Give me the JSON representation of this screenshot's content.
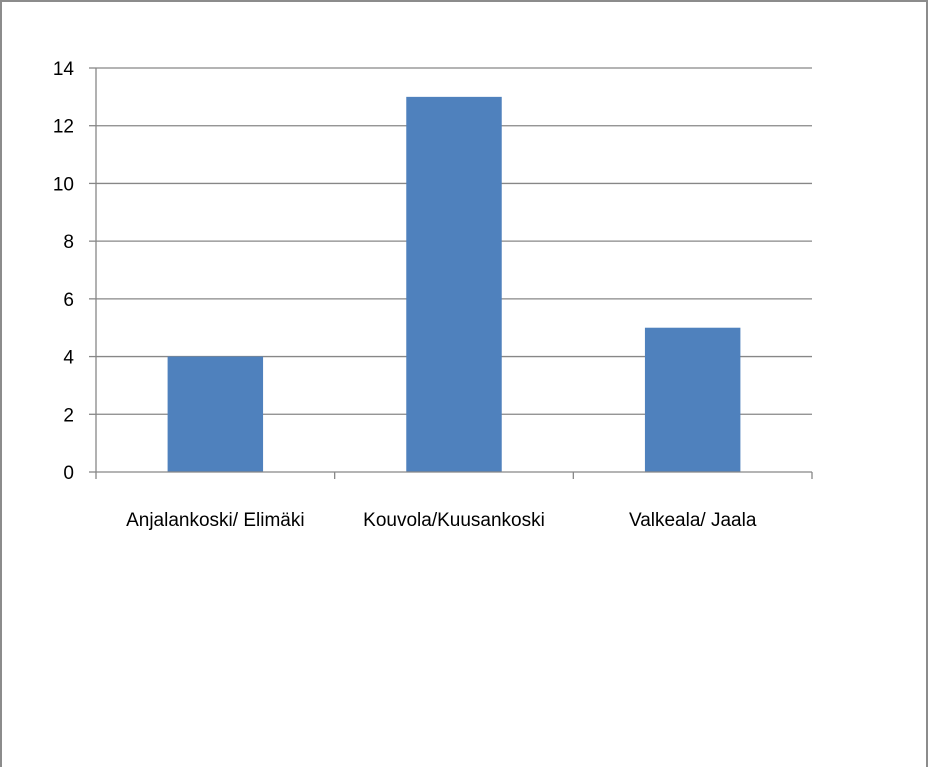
{
  "chart_data": {
    "type": "bar",
    "categories": [
      "Anjalankoski/ Elimäki",
      "Kouvola/Kuusankoski",
      "Valkeala/ Jaala"
    ],
    "series": [
      {
        "values": [
          4,
          13,
          5
        ]
      }
    ],
    "ylim": [
      0,
      14
    ],
    "yticks": [
      0,
      2,
      4,
      6,
      8,
      10,
      12,
      14
    ],
    "ytick_labels": [
      "0",
      "2",
      "4",
      "6",
      "8",
      "10",
      "12",
      "14"
    ],
    "grid": true,
    "legend": "none",
    "title": "",
    "xlabel": "",
    "ylabel": "",
    "bar_color": "#4f81bd",
    "grid_color": "#878787"
  }
}
